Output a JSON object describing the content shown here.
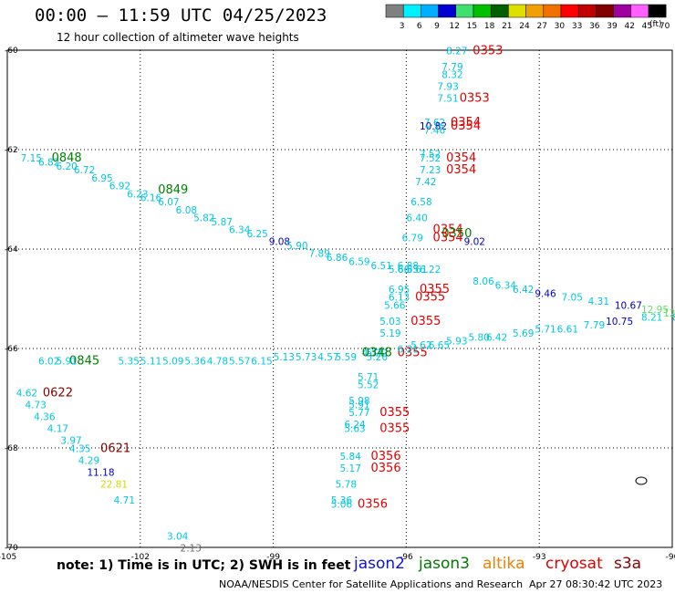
{
  "title": "00:00 – 11:59 UTC 04/25/2023",
  "subtitle": "12 hour collection of altimeter wave heights",
  "colorbar": {
    "ticks": [
      "3",
      "6",
      "9",
      "12",
      "15",
      "18",
      "21",
      "24",
      "27",
      "30",
      "33",
      "36",
      "39",
      "42",
      "45",
      "70"
    ],
    "units": "(ft)",
    "colors": [
      "#808080",
      "#00f0ff",
      "#00b0ff",
      "#0000d0",
      "#40e070",
      "#00c000",
      "#006000",
      "#e0e000",
      "#f0a000",
      "#f07000",
      "#ff0000",
      "#c00000",
      "#800000",
      "#a000a0",
      "#ff60ff",
      "#000000"
    ]
  },
  "axes": {
    "x_ticks": [
      "-105",
      "-102",
      "-99",
      "-96",
      "-93",
      "-90"
    ],
    "y_ticks": [
      "-60",
      "-62",
      "-64",
      "-66",
      "-68",
      "-70"
    ]
  },
  "track_colors": {
    "cyan": "#00c8e0",
    "blue": "#0000c0",
    "green": "#008000",
    "darkred": "#800000",
    "red": "#e00000",
    "yellow": "#d8d800",
    "lime": "#60e060",
    "gray": "#707070"
  },
  "labels": [
    {
      "t": "8.27",
      "lon": -95.1,
      "lat": -60.1,
      "c": "cyan"
    },
    {
      "t": "0353",
      "lon": -94.5,
      "lat": -60.1,
      "c": "red",
      "big": true
    },
    {
      "t": "7.79",
      "lon": -95.2,
      "lat": -60.5,
      "c": "cyan"
    },
    {
      "t": "8.32",
      "lon": -95.2,
      "lat": -60.7,
      "c": "cyan"
    },
    {
      "t": "7.93",
      "lon": -95.3,
      "lat": -61.0,
      "c": "cyan"
    },
    {
      "t": "7.51",
      "lon": -95.3,
      "lat": -61.3,
      "c": "cyan"
    },
    {
      "t": "0353",
      "lon": -94.8,
      "lat": -61.3,
      "c": "red",
      "big": true
    },
    {
      "t": "7.62",
      "lon": -95.6,
      "lat": -61.9,
      "c": "cyan"
    },
    {
      "t": "10.82",
      "lon": -95.7,
      "lat": -62.0,
      "c": "blue"
    },
    {
      "t": "0354",
      "lon": -95.0,
      "lat": -61.9,
      "c": "red",
      "big": true
    },
    {
      "t": "7.46",
      "lon": -95.6,
      "lat": -62.1,
      "c": "cyan"
    },
    {
      "t": "0354",
      "lon": -95.0,
      "lat": -62.0,
      "c": "red",
      "big": true
    },
    {
      "t": "7.52",
      "lon": -95.7,
      "lat": -62.7,
      "c": "cyan"
    },
    {
      "t": "7.52",
      "lon": -95.7,
      "lat": -62.8,
      "c": "cyan"
    },
    {
      "t": "0354",
      "lon": -95.1,
      "lat": -62.8,
      "c": "red",
      "big": true
    },
    {
      "t": "7.23",
      "lon": -95.7,
      "lat": -63.1,
      "c": "cyan"
    },
    {
      "t": "0354",
      "lon": -95.1,
      "lat": -63.1,
      "c": "red",
      "big": true
    },
    {
      "t": "7.42",
      "lon": -95.8,
      "lat": -63.4,
      "c": "cyan"
    },
    {
      "t": "6.58",
      "lon": -95.9,
      "lat": -63.9,
      "c": "cyan"
    },
    {
      "t": "6.40",
      "lon": -96.0,
      "lat": -64.3,
      "c": "cyan"
    },
    {
      "t": "6.79",
      "lon": -96.1,
      "lat": -64.8,
      "c": "cyan"
    },
    {
      "t": "0354",
      "lon": -95.4,
      "lat": -64.6,
      "c": "red",
      "big": true
    },
    {
      "t": "0350",
      "lon": -95.2,
      "lat": -64.7,
      "c": "green",
      "big": true
    },
    {
      "t": "0354",
      "lon": -95.4,
      "lat": -64.8,
      "c": "red",
      "big": true
    },
    {
      "t": "9.02",
      "lon": -94.7,
      "lat": -64.9,
      "c": "blue"
    },
    {
      "t": "6.88",
      "lon": -96.2,
      "lat": -65.5,
      "c": "cyan"
    },
    {
      "t": "6.65",
      "lon": -96.2,
      "lat": -65.6,
      "c": "cyan"
    },
    {
      "t": "6.95",
      "lon": -96.4,
      "lat": -66.1,
      "c": "cyan"
    },
    {
      "t": "6.13",
      "lon": -96.4,
      "lat": -66.3,
      "c": "cyan"
    },
    {
      "t": "0355",
      "lon": -95.7,
      "lat": -66.1,
      "c": "red",
      "big": true
    },
    {
      "t": "0355",
      "lon": -95.8,
      "lat": -66.3,
      "c": "red",
      "big": true
    },
    {
      "t": "5.66",
      "lon": -96.5,
      "lat": -66.5,
      "c": "cyan"
    },
    {
      "t": "5.03",
      "lon": -96.6,
      "lat": -66.9,
      "c": "cyan"
    },
    {
      "t": "0355",
      "lon": -95.9,
      "lat": -66.9,
      "c": "red",
      "big": true
    },
    {
      "t": "5.19",
      "lon": -96.6,
      "lat": -67.2,
      "c": "cyan"
    },
    {
      "t": "5.22",
      "lon": -96.9,
      "lat": -67.7,
      "c": "cyan"
    },
    {
      "t": "5.26",
      "lon": -96.9,
      "lat": -67.8,
      "c": "cyan"
    },
    {
      "t": "0355",
      "lon": -96.2,
      "lat": -67.7,
      "c": "red",
      "big": true
    },
    {
      "t": "5.71",
      "lon": -97.1,
      "lat": -68.3,
      "c": "cyan"
    },
    {
      "t": "5.52",
      "lon": -97.1,
      "lat": -68.5,
      "c": "cyan"
    },
    {
      "t": "5.98",
      "lon": -97.3,
      "lat": -68.9,
      "c": "cyan"
    },
    {
      "t": "5.91",
      "lon": -97.3,
      "lat": -69.0,
      "c": "cyan"
    },
    {
      "t": "5.77",
      "lon": -97.3,
      "lat": -69.2,
      "c": "cyan"
    },
    {
      "t": "0355",
      "lon": -96.6,
      "lat": -69.2,
      "c": "red",
      "big": true
    },
    {
      "t": "6.24",
      "lon": -97.4,
      "lat": -69.5,
      "c": "cyan"
    },
    {
      "t": "5.63",
      "lon": -97.4,
      "lat": -69.6,
      "c": "cyan"
    },
    {
      "t": "0355",
      "lon": -96.6,
      "lat": -69.6,
      "c": "red",
      "big": true
    },
    {
      "t": "5.84",
      "lon": -97.5,
      "lat": -70.3,
      "c": "cyan"
    },
    {
      "t": "0356",
      "lon": -96.8,
      "lat": -70.3,
      "c": "red",
      "big": true
    },
    {
      "t": "5.17",
      "lon": -97.5,
      "lat": -70.6,
      "c": "cyan"
    },
    {
      "t": "0356",
      "lon": -96.8,
      "lat": -70.6,
      "c": "red",
      "big": true
    },
    {
      "t": "5.78",
      "lon": -97.6,
      "lat": -71.0,
      "c": "cyan"
    },
    {
      "t": "5.36",
      "lon": -97.7,
      "lat": -71.4,
      "c": "cyan"
    },
    {
      "t": "5.06",
      "lon": -97.7,
      "lat": -71.5,
      "c": "cyan"
    },
    {
      "t": "0356",
      "lon": -97.1,
      "lat": -71.5,
      "c": "red",
      "big": true
    },
    {
      "t": "7.15",
      "lon": -104.7,
      "lat": -62.8,
      "c": "cyan"
    },
    {
      "t": "6.82",
      "lon": -104.3,
      "lat": -62.9,
      "c": "cyan"
    },
    {
      "t": "0848",
      "lon": -104.0,
      "lat": -62.8,
      "c": "green",
      "big": true
    },
    {
      "t": "6.20",
      "lon": -103.9,
      "lat": -63.0,
      "c": "cyan"
    },
    {
      "t": "6.72",
      "lon": -103.5,
      "lat": -63.1,
      "c": "cyan"
    },
    {
      "t": "6.95",
      "lon": -103.1,
      "lat": -63.3,
      "c": "cyan"
    },
    {
      "t": "6.92",
      "lon": -102.7,
      "lat": -63.5,
      "c": "cyan"
    },
    {
      "t": "6.23",
      "lon": -102.3,
      "lat": -63.7,
      "c": "cyan"
    },
    {
      "t": "6.16",
      "lon": -102.0,
      "lat": -63.8,
      "c": "cyan"
    },
    {
      "t": "0849",
      "lon": -101.6,
      "lat": -63.6,
      "c": "green",
      "big": true
    },
    {
      "t": "6.07",
      "lon": -101.6,
      "lat": -63.9,
      "c": "cyan"
    },
    {
      "t": "6.08",
      "lon": -101.2,
      "lat": -64.1,
      "c": "cyan"
    },
    {
      "t": "5.82",
      "lon": -100.8,
      "lat": -64.3,
      "c": "cyan"
    },
    {
      "t": "5.87",
      "lon": -100.4,
      "lat": -64.4,
      "c": "cyan"
    },
    {
      "t": "6.34",
      "lon": -100.0,
      "lat": -64.6,
      "c": "cyan"
    },
    {
      "t": "6.25",
      "lon": -99.6,
      "lat": -64.7,
      "c": "cyan"
    },
    {
      "t": "9.08",
      "lon": -99.1,
      "lat": -64.9,
      "c": "blue"
    },
    {
      "t": "5.90",
      "lon": -98.7,
      "lat": -65.0,
      "c": "cyan"
    },
    {
      "t": "7.89",
      "lon": -98.2,
      "lat": -65.2,
      "c": "cyan"
    },
    {
      "t": "6.86",
      "lon": -97.8,
      "lat": -65.3,
      "c": "cyan"
    },
    {
      "t": "6.59",
      "lon": -97.3,
      "lat": -65.4,
      "c": "cyan"
    },
    {
      "t": "6.51",
      "lon": -96.8,
      "lat": -65.5,
      "c": "cyan"
    },
    {
      "t": "5.66",
      "lon": -96.4,
      "lat": -65.6,
      "c": "cyan"
    },
    {
      "t": "5.61",
      "lon": -96.0,
      "lat": -65.6,
      "c": "cyan"
    },
    {
      "t": "6.22",
      "lon": -95.7,
      "lat": -65.6,
      "c": "cyan"
    },
    {
      "t": "8.06",
      "lon": -94.5,
      "lat": -65.9,
      "c": "cyan"
    },
    {
      "t": "6.34",
      "lon": -94.0,
      "lat": -66.0,
      "c": "cyan"
    },
    {
      "t": "6.42",
      "lon": -93.6,
      "lat": -66.1,
      "c": "cyan"
    },
    {
      "t": "9.46",
      "lon": -93.1,
      "lat": -66.2,
      "c": "blue"
    },
    {
      "t": "7.05",
      "lon": -92.5,
      "lat": -66.3,
      "c": "cyan"
    },
    {
      "t": "4.31",
      "lon": -91.9,
      "lat": -66.4,
      "c": "cyan"
    },
    {
      "t": "10.67",
      "lon": -91.3,
      "lat": -66.5,
      "c": "blue"
    },
    {
      "t": "12.95",
      "lon": -90.7,
      "lat": -66.6,
      "c": "lime"
    },
    {
      "t": "12.17",
      "lon": -90.2,
      "lat": -66.7,
      "c": "lime"
    },
    {
      "t": "10.75",
      "lon": -91.5,
      "lat": -66.9,
      "c": "blue"
    },
    {
      "t": "8.21",
      "lon": -90.7,
      "lat": -66.8,
      "c": "cyan"
    },
    {
      "t": "8",
      "lon": -90.0,
      "lat": -66.8,
      "c": "cyan"
    },
    {
      "t": "7.79",
      "lon": -92.0,
      "lat": -67.0,
      "c": "cyan"
    },
    {
      "t": "6.61",
      "lon": -92.6,
      "lat": -67.1,
      "c": "cyan"
    },
    {
      "t": "5.71",
      "lon": -93.1,
      "lat": -67.1,
      "c": "cyan"
    },
    {
      "t": "5.69",
      "lon": -93.6,
      "lat": -67.2,
      "c": "cyan"
    },
    {
      "t": "6.42",
      "lon": -94.2,
      "lat": -67.3,
      "c": "cyan"
    },
    {
      "t": "5.80",
      "lon": -94.6,
      "lat": -67.3,
      "c": "cyan"
    },
    {
      "t": "5.93",
      "lon": -95.1,
      "lat": -67.4,
      "c": "cyan"
    },
    {
      "t": "6.65",
      "lon": -95.5,
      "lat": -67.5,
      "c": "cyan"
    },
    {
      "t": "5.62",
      "lon": -95.9,
      "lat": -67.5,
      "c": "cyan"
    },
    {
      "t": "6.21",
      "lon": -96.2,
      "lat": -67.6,
      "c": "cyan"
    },
    {
      "t": "4.77",
      "lon": -97.0,
      "lat": -67.7,
      "c": "cyan"
    },
    {
      "t": "0348",
      "lon": -97.0,
      "lat": -67.7,
      "c": "green",
      "big": true
    },
    {
      "t": "5.59",
      "lon": -97.6,
      "lat": -67.8,
      "c": "cyan"
    },
    {
      "t": "4.57",
      "lon": -98.0,
      "lat": -67.8,
      "c": "cyan"
    },
    {
      "t": "5.73",
      "lon": -98.5,
      "lat": -67.8,
      "c": "cyan"
    },
    {
      "t": "5.13",
      "lon": -99.0,
      "lat": -67.8,
      "c": "cyan"
    },
    {
      "t": "6.15",
      "lon": -99.5,
      "lat": -67.9,
      "c": "cyan"
    },
    {
      "t": "5.57",
      "lon": -100.0,
      "lat": -67.9,
      "c": "cyan"
    },
    {
      "t": "4.78",
      "lon": -100.5,
      "lat": -67.9,
      "c": "cyan"
    },
    {
      "t": "5.36",
      "lon": -101.0,
      "lat": -67.9,
      "c": "cyan"
    },
    {
      "t": "5.09",
      "lon": -101.5,
      "lat": -67.9,
      "c": "cyan"
    },
    {
      "t": "5.11",
      "lon": -102.0,
      "lat": -67.9,
      "c": "cyan"
    },
    {
      "t": "5.35",
      "lon": -102.5,
      "lat": -67.9,
      "c": "cyan"
    },
    {
      "t": "0845",
      "lon": -103.6,
      "lat": -67.9,
      "c": "green",
      "big": true
    },
    {
      "t": "6.02",
      "lon": -104.3,
      "lat": -67.9,
      "c": "cyan"
    },
    {
      "t": "5.91",
      "lon": -103.9,
      "lat": -67.9,
      "c": "cyan"
    },
    {
      "t": "4.62",
      "lon": -104.8,
      "lat": -68.7,
      "c": "cyan"
    },
    {
      "t": "0622",
      "lon": -104.2,
      "lat": -68.7,
      "c": "darkred",
      "big": true
    },
    {
      "t": "4.73",
      "lon": -104.6,
      "lat": -69.0,
      "c": "cyan"
    },
    {
      "t": "4.36",
      "lon": -104.4,
      "lat": -69.3,
      "c": "cyan"
    },
    {
      "t": "4.17",
      "lon": -104.1,
      "lat": -69.6,
      "c": "cyan"
    },
    {
      "t": "3.97",
      "lon": -103.8,
      "lat": -69.9,
      "c": "cyan"
    },
    {
      "t": "4.35",
      "lon": -103.6,
      "lat": -70.1,
      "c": "cyan"
    },
    {
      "t": "0621",
      "lon": -102.9,
      "lat": -70.1,
      "c": "darkred",
      "big": true
    },
    {
      "t": "4.29",
      "lon": -103.4,
      "lat": -70.4,
      "c": "cyan"
    },
    {
      "t": "11.18",
      "lon": -103.2,
      "lat": -70.7,
      "c": "blue"
    },
    {
      "t": "22.81",
      "lon": -102.9,
      "lat": -71.0,
      "c": "yellow"
    },
    {
      "t": "4.71",
      "lon": -102.6,
      "lat": -71.4,
      "c": "cyan"
    },
    {
      "t": "3.04",
      "lon": -101.4,
      "lat": -72.3,
      "c": "cyan"
    },
    {
      "t": "2.13",
      "lon": -101.1,
      "lat": -72.6,
      "c": "gray"
    }
  ],
  "legend": {
    "note": "note: 1) Time is in UTC; 2) SWH is in feet",
    "satellites": [
      "jason2",
      "jason3",
      "altika",
      "cryosat",
      "s3a"
    ]
  },
  "footer": {
    "left": "NOAA/NESDIS Center for Satellite Applications and Research",
    "right": "Apr 27 08:30:42 UTC 2023"
  }
}
